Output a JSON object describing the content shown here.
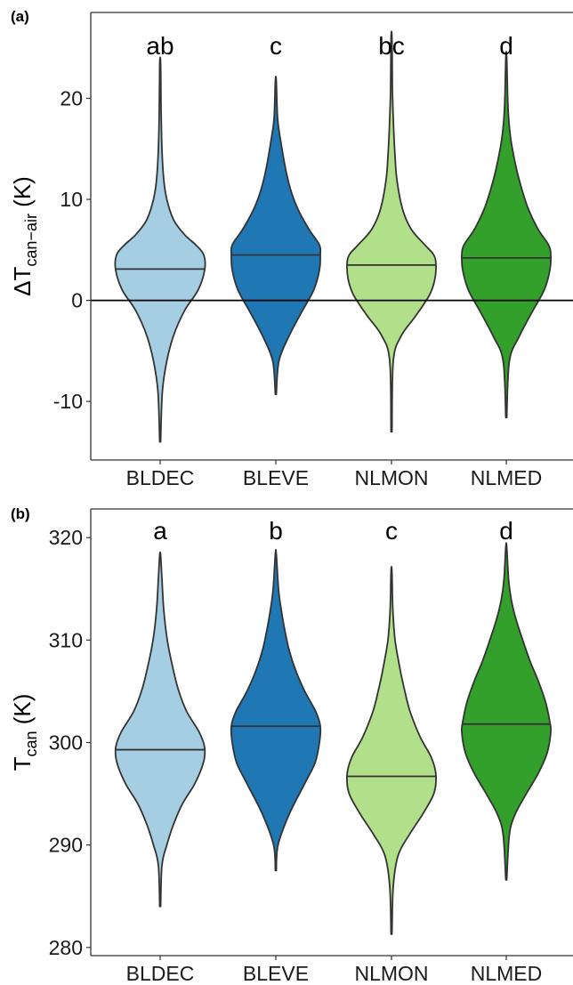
{
  "chart_data": [
    {
      "type": "violin",
      "panel_label": "(a)",
      "ylabel": {
        "prefix": "ΔT",
        "subscript": "can−air",
        "suffix": " (K)"
      },
      "ylim": [
        -15.8,
        28.5
      ],
      "yticks": [
        -10,
        0,
        10,
        20
      ],
      "ytick_labels": [
        "-10",
        "0",
        "10",
        "20"
      ],
      "zero_line": 0,
      "grid": false,
      "categories": [
        "BLDEC",
        "BLEVE",
        "NLMON",
        "NLMED"
      ],
      "colors": [
        "#a6cee3",
        "#1f78b4",
        "#b2df8a",
        "#33a02c"
      ],
      "significance_letters": [
        "ab",
        "c",
        "bc",
        "d"
      ],
      "medians": [
        3.1,
        4.5,
        3.5,
        4.2
      ],
      "violins": [
        {
          "category": "BLDEC",
          "profile": [
            [
              -14.0,
              0.01
            ],
            [
              -9,
              0.05
            ],
            [
              -6,
              0.15
            ],
            [
              -3.5,
              0.3
            ],
            [
              -1,
              0.55
            ],
            [
              1,
              0.85
            ],
            [
              3,
              1.0
            ],
            [
              4.5,
              0.98
            ],
            [
              5.5,
              0.8
            ],
            [
              6.5,
              0.55
            ],
            [
              8,
              0.3
            ],
            [
              10,
              0.15
            ],
            [
              12,
              0.08
            ],
            [
              15,
              0.04
            ],
            [
              19,
              0.02
            ],
            [
              23.5,
              0.01
            ]
          ]
        },
        {
          "category": "BLEVE",
          "profile": [
            [
              -9.3,
              0.01
            ],
            [
              -6,
              0.07
            ],
            [
              -3.5,
              0.3
            ],
            [
              -1,
              0.6
            ],
            [
              1,
              0.85
            ],
            [
              3,
              0.98
            ],
            [
              4.5,
              1.0
            ],
            [
              5.5,
              0.98
            ],
            [
              7,
              0.75
            ],
            [
              9,
              0.5
            ],
            [
              11,
              0.33
            ],
            [
              13,
              0.22
            ],
            [
              15.5,
              0.12
            ],
            [
              18,
              0.04
            ],
            [
              21.7,
              0.01
            ]
          ]
        },
        {
          "category": "NLMON",
          "profile": [
            [
              -13.0,
              0.01
            ],
            [
              -6,
              0.04
            ],
            [
              -3.5,
              0.22
            ],
            [
              -1.5,
              0.55
            ],
            [
              0.5,
              0.85
            ],
            [
              2,
              0.97
            ],
            [
              3.5,
              1.0
            ],
            [
              4.5,
              0.95
            ],
            [
              5.5,
              0.75
            ],
            [
              7,
              0.45
            ],
            [
              9,
              0.25
            ],
            [
              12,
              0.12
            ],
            [
              15,
              0.07
            ],
            [
              18,
              0.04
            ],
            [
              21,
              0.02
            ],
            [
              26,
              0.01
            ]
          ]
        },
        {
          "category": "NLMED",
          "profile": [
            [
              -11.6,
              0.01
            ],
            [
              -6,
              0.07
            ],
            [
              -3.5,
              0.3
            ],
            [
              -1,
              0.6
            ],
            [
              1,
              0.85
            ],
            [
              3,
              0.98
            ],
            [
              4.5,
              1.0
            ],
            [
              5.5,
              0.95
            ],
            [
              7,
              0.72
            ],
            [
              9,
              0.5
            ],
            [
              11,
              0.35
            ],
            [
              13,
              0.23
            ],
            [
              16,
              0.1
            ],
            [
              19,
              0.04
            ],
            [
              24,
              0.01
            ]
          ]
        }
      ]
    },
    {
      "type": "violin",
      "panel_label": "(b)",
      "ylabel": {
        "prefix": "T",
        "subscript": "can",
        "suffix": " (K)"
      },
      "ylim": [
        279.2,
        322.8
      ],
      "yticks": [
        280,
        290,
        300,
        310,
        320
      ],
      "ytick_labels": [
        "280",
        "290",
        "300",
        "310",
        "320"
      ],
      "grid": false,
      "categories": [
        "BLDEC",
        "BLEVE",
        "NLMON",
        "NLMED"
      ],
      "colors": [
        "#a6cee3",
        "#1f78b4",
        "#b2df8a",
        "#33a02c"
      ],
      "significance_letters": [
        "a",
        "b",
        "c",
        "d"
      ],
      "medians": [
        299.3,
        301.6,
        296.7,
        301.8
      ],
      "violins": [
        {
          "category": "BLDEC",
          "profile": [
            [
              284.0,
              0.01
            ],
            [
              288,
              0.04
            ],
            [
              290,
              0.15
            ],
            [
              292,
              0.3
            ],
            [
              294,
              0.5
            ],
            [
              296,
              0.78
            ],
            [
              298,
              0.97
            ],
            [
              299.5,
              1.0
            ],
            [
              301,
              0.88
            ],
            [
              303,
              0.6
            ],
            [
              305,
              0.42
            ],
            [
              307,
              0.3
            ],
            [
              310,
              0.16
            ],
            [
              313,
              0.08
            ],
            [
              316,
              0.04
            ],
            [
              318.3,
              0.01
            ]
          ]
        },
        {
          "category": "BLEVE",
          "profile": [
            [
              287.5,
              0.01
            ],
            [
              290,
              0.05
            ],
            [
              293,
              0.3
            ],
            [
              296,
              0.65
            ],
            [
              298,
              0.88
            ],
            [
              300,
              0.98
            ],
            [
              301.6,
              1.0
            ],
            [
              303,
              0.9
            ],
            [
              305,
              0.65
            ],
            [
              307,
              0.45
            ],
            [
              309,
              0.3
            ],
            [
              311,
              0.2
            ],
            [
              313,
              0.12
            ],
            [
              315,
              0.06
            ],
            [
              318.4,
              0.01
            ]
          ]
        },
        {
          "category": "NLMON",
          "profile": [
            [
              281.3,
              0.01
            ],
            [
              286,
              0.04
            ],
            [
              289,
              0.15
            ],
            [
              291,
              0.4
            ],
            [
              293,
              0.7
            ],
            [
              295,
              0.95
            ],
            [
              296.8,
              1.0
            ],
            [
              298.5,
              0.9
            ],
            [
              300.5,
              0.65
            ],
            [
              303,
              0.42
            ],
            [
              305,
              0.3
            ],
            [
              307,
              0.2
            ],
            [
              310,
              0.08
            ],
            [
              313,
              0.03
            ],
            [
              316.7,
              0.01
            ]
          ]
        },
        {
          "category": "NLMED",
          "profile": [
            [
              286.6,
              0.01
            ],
            [
              291,
              0.07
            ],
            [
              293,
              0.2
            ],
            [
              295,
              0.45
            ],
            [
              297,
              0.72
            ],
            [
              299,
              0.92
            ],
            [
              301,
              1.0
            ],
            [
              302,
              0.98
            ],
            [
              304,
              0.88
            ],
            [
              306,
              0.72
            ],
            [
              308,
              0.53
            ],
            [
              310,
              0.37
            ],
            [
              312,
              0.22
            ],
            [
              314,
              0.11
            ],
            [
              316,
              0.05
            ],
            [
              319.1,
              0.01
            ]
          ]
        }
      ]
    }
  ]
}
